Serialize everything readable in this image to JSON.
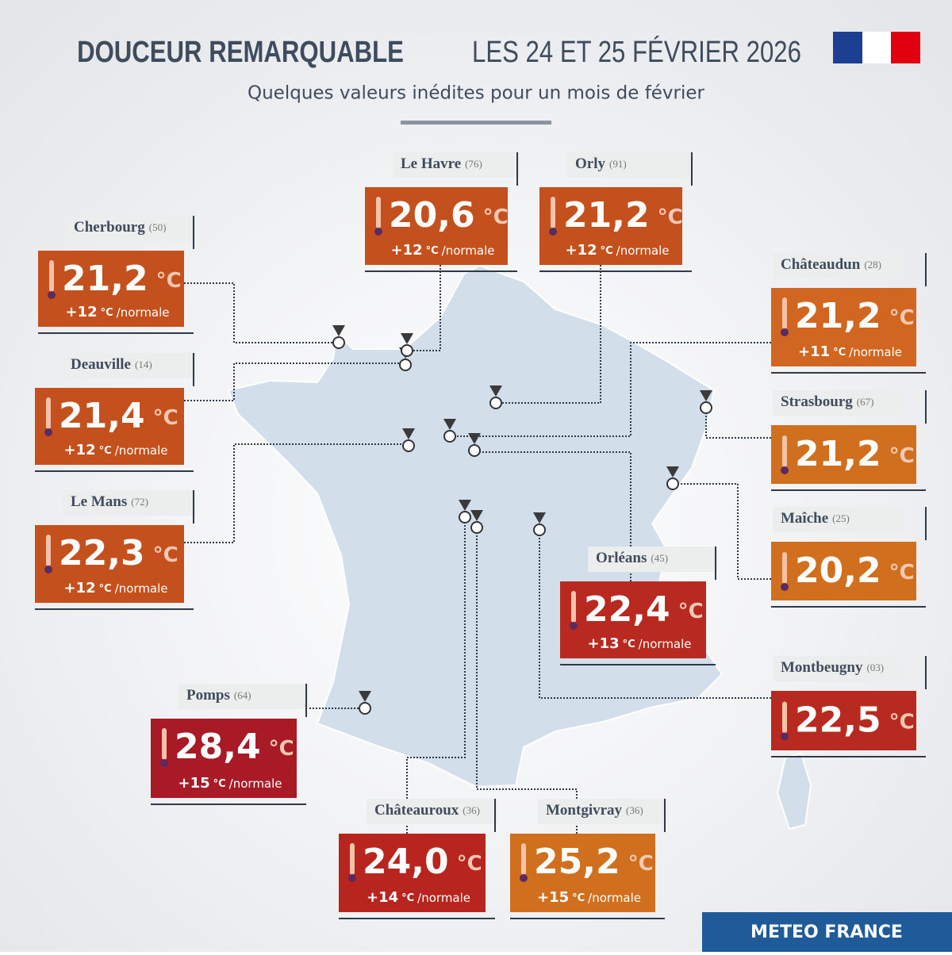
{
  "header": {
    "title_bold": "DOUCEUR REMARQUABLE",
    "title_rest": "LES 24 ET 25 FÉVRIER 2026",
    "subtitle": "Quelques valeurs inédites pour un mois de février"
  },
  "units": {
    "temp": "°C",
    "anomaly": "°C",
    "suffix": "/normale"
  },
  "stations": [
    {
      "name": "Cherbourg",
      "dept": "(50)",
      "temp": "21,2",
      "anomaly": "+12"
    },
    {
      "name": "Deauville",
      "dept": "(14)",
      "temp": "21,4",
      "anomaly": "+12"
    },
    {
      "name": "Le Mans",
      "dept": "(72)",
      "temp": "22,3",
      "anomaly": "+12"
    },
    {
      "name": "Le Havre",
      "dept": "(76)",
      "temp": "20,6",
      "anomaly": "+12"
    },
    {
      "name": "Orly",
      "dept": "(91)",
      "temp": "21,2",
      "anomaly": "+12"
    },
    {
      "name": "Châteaudun",
      "dept": "(28)",
      "temp": "21,2",
      "anomaly": "+11"
    },
    {
      "name": "Strasbourg",
      "dept": "(67)",
      "temp": "21,2"
    },
    {
      "name": "Maîche",
      "dept": "(25)",
      "temp": "20,2"
    },
    {
      "name": "Orléans",
      "dept": "(45)",
      "temp": "22,4",
      "anomaly": "+13"
    },
    {
      "name": "Montbeugny",
      "dept": "(03)",
      "temp": "22,5"
    },
    {
      "name": "Pomps",
      "dept": "(64)",
      "temp": "28,4",
      "anomaly": "+15"
    },
    {
      "name": "Châteauroux",
      "dept": "(36)",
      "temp": "24,0",
      "anomaly": "+14"
    },
    {
      "name": "Montgivray",
      "dept": "(36)",
      "temp": "25,2",
      "anomaly": "+15"
    }
  ],
  "footer": {
    "brand": "METEO FRANCE"
  }
}
